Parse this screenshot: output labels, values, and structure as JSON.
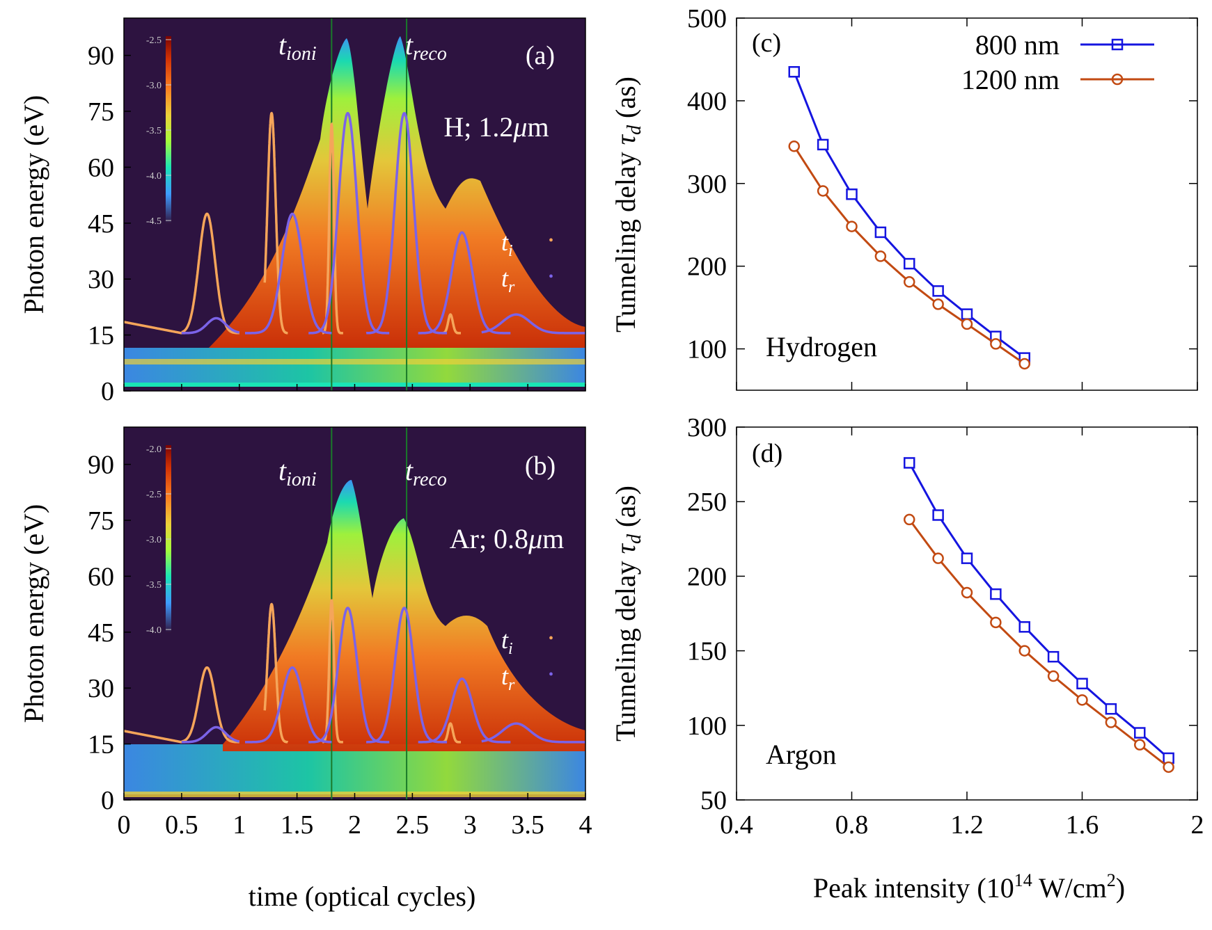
{
  "figure": {
    "left_panels": {
      "time_label": "time (optical cycles)",
      "energy_label": "Photon energy (eV)",
      "x_ticks": [
        "0",
        "0.5",
        "1",
        "1.5",
        "2",
        "2.5",
        "3",
        "3.5",
        "4"
      ],
      "y_ticks": [
        "0",
        "15",
        "30",
        "45",
        "60",
        "75",
        "90"
      ],
      "t_ioni_base": "t",
      "t_ioni_sub": "ioni",
      "t_reco_base": "t",
      "t_reco_sub": "reco",
      "ti_base": "t",
      "ti_sub": "i",
      "tr_base": "t",
      "tr_sub": "r",
      "ti_color": "#f5a55a",
      "tr_color": "#7b63e8"
    },
    "panel_a": {
      "tag": "(a)",
      "label": "H; 1.2",
      "mu": "μ",
      "unit": "m",
      "colorbar_ticks": [
        "-2.5",
        "-3.0",
        "-3.5",
        "-4.0",
        "-4.5"
      ]
    },
    "panel_b": {
      "tag": "(b)",
      "label": "Ar; 0.8",
      "mu": "μ",
      "unit": "m",
      "colorbar_ticks": [
        "-2.0",
        "-2.5",
        "-3.0",
        "-3.5",
        "-4.0"
      ]
    },
    "right_panels": {
      "ylabel_main": "Tunneling delay ",
      "ylabel_tau": "τ",
      "ylabel_sub": "d",
      "ylabel_units": " (as)",
      "xlabel_main": "Peak intensity (10",
      "xlabel_exp": "14",
      "xlabel_mid": " W/cm",
      "xlabel_exp2": "2",
      "xlabel_end": ")",
      "x_ticks": [
        "0.4",
        "0.8",
        "1.2",
        "1.6",
        "2"
      ],
      "legend": [
        "800 nm",
        "1200 nm"
      ],
      "colors": {
        "800 nm": "#1515e0",
        "1200 nm": "#c24a12"
      }
    },
    "panel_c": {
      "tag": "(c)",
      "label": "Hydrogen",
      "y_ticks": [
        "100",
        "200",
        "300",
        "400",
        "500"
      ]
    },
    "panel_d": {
      "tag": "(d)",
      "label": "Argon",
      "y_ticks": [
        "50",
        "100",
        "150",
        "200",
        "250",
        "300"
      ]
    }
  },
  "chart_data": [
    {
      "type": "heatmap",
      "panel": "(a)",
      "title": "H; 1.2μm",
      "xlabel": "time (optical cycles)",
      "ylabel": "Photon energy (eV)",
      "xlim": [
        0,
        4
      ],
      "ylim": [
        0,
        100
      ],
      "colorbar_range": [
        -4.5,
        -2.5
      ],
      "markers": {
        "t_ioni": 1.8,
        "t_reco": 2.45
      },
      "legend": [
        "t_i",
        "t_r"
      ]
    },
    {
      "type": "heatmap",
      "panel": "(b)",
      "title": "Ar; 0.8μm",
      "xlabel": "time (optical cycles)",
      "ylabel": "Photon energy (eV)",
      "xlim": [
        0,
        4
      ],
      "ylim": [
        0,
        100
      ],
      "colorbar_range": [
        -4.0,
        -2.0
      ],
      "markers": {
        "t_ioni": 1.8,
        "t_reco": 2.45
      },
      "legend": [
        "t_i",
        "t_r"
      ]
    },
    {
      "type": "line",
      "panel": "(c)",
      "label": "Hydrogen",
      "xlabel": "Peak intensity (10^14 W/cm^2)",
      "ylabel": "Tunneling delay τ_d (as)",
      "xlim": [
        0.4,
        2.0
      ],
      "ylim": [
        50,
        500
      ],
      "series": [
        {
          "name": "800 nm",
          "marker": "square",
          "x": [
            0.6,
            0.7,
            0.8,
            0.9,
            1.0,
            1.1,
            1.2,
            1.3,
            1.4
          ],
          "y": [
            435,
            347,
            287,
            241,
            203,
            170,
            142,
            115,
            89
          ]
        },
        {
          "name": "1200 nm",
          "marker": "circle",
          "x": [
            0.6,
            0.7,
            0.8,
            0.9,
            1.0,
            1.1,
            1.2,
            1.3,
            1.4
          ],
          "y": [
            345,
            291,
            248,
            212,
            181,
            154,
            130,
            106,
            82
          ]
        }
      ]
    },
    {
      "type": "line",
      "panel": "(d)",
      "label": "Argon",
      "xlabel": "Peak intensity (10^14 W/cm^2)",
      "ylabel": "Tunneling delay τ_d (as)",
      "xlim": [
        0.4,
        2.0
      ],
      "ylim": [
        50,
        300
      ],
      "series": [
        {
          "name": "800 nm",
          "marker": "square",
          "x": [
            1.0,
            1.1,
            1.2,
            1.3,
            1.4,
            1.5,
            1.6,
            1.7,
            1.8,
            1.9
          ],
          "y": [
            276,
            241,
            212,
            188,
            166,
            146,
            128,
            111,
            95,
            78
          ]
        },
        {
          "name": "1200 nm",
          "marker": "circle",
          "x": [
            1.0,
            1.1,
            1.2,
            1.3,
            1.4,
            1.5,
            1.6,
            1.7,
            1.8,
            1.9
          ],
          "y": [
            238,
            212,
            189,
            169,
            150,
            133,
            117,
            102,
            87,
            72
          ]
        }
      ]
    }
  ]
}
